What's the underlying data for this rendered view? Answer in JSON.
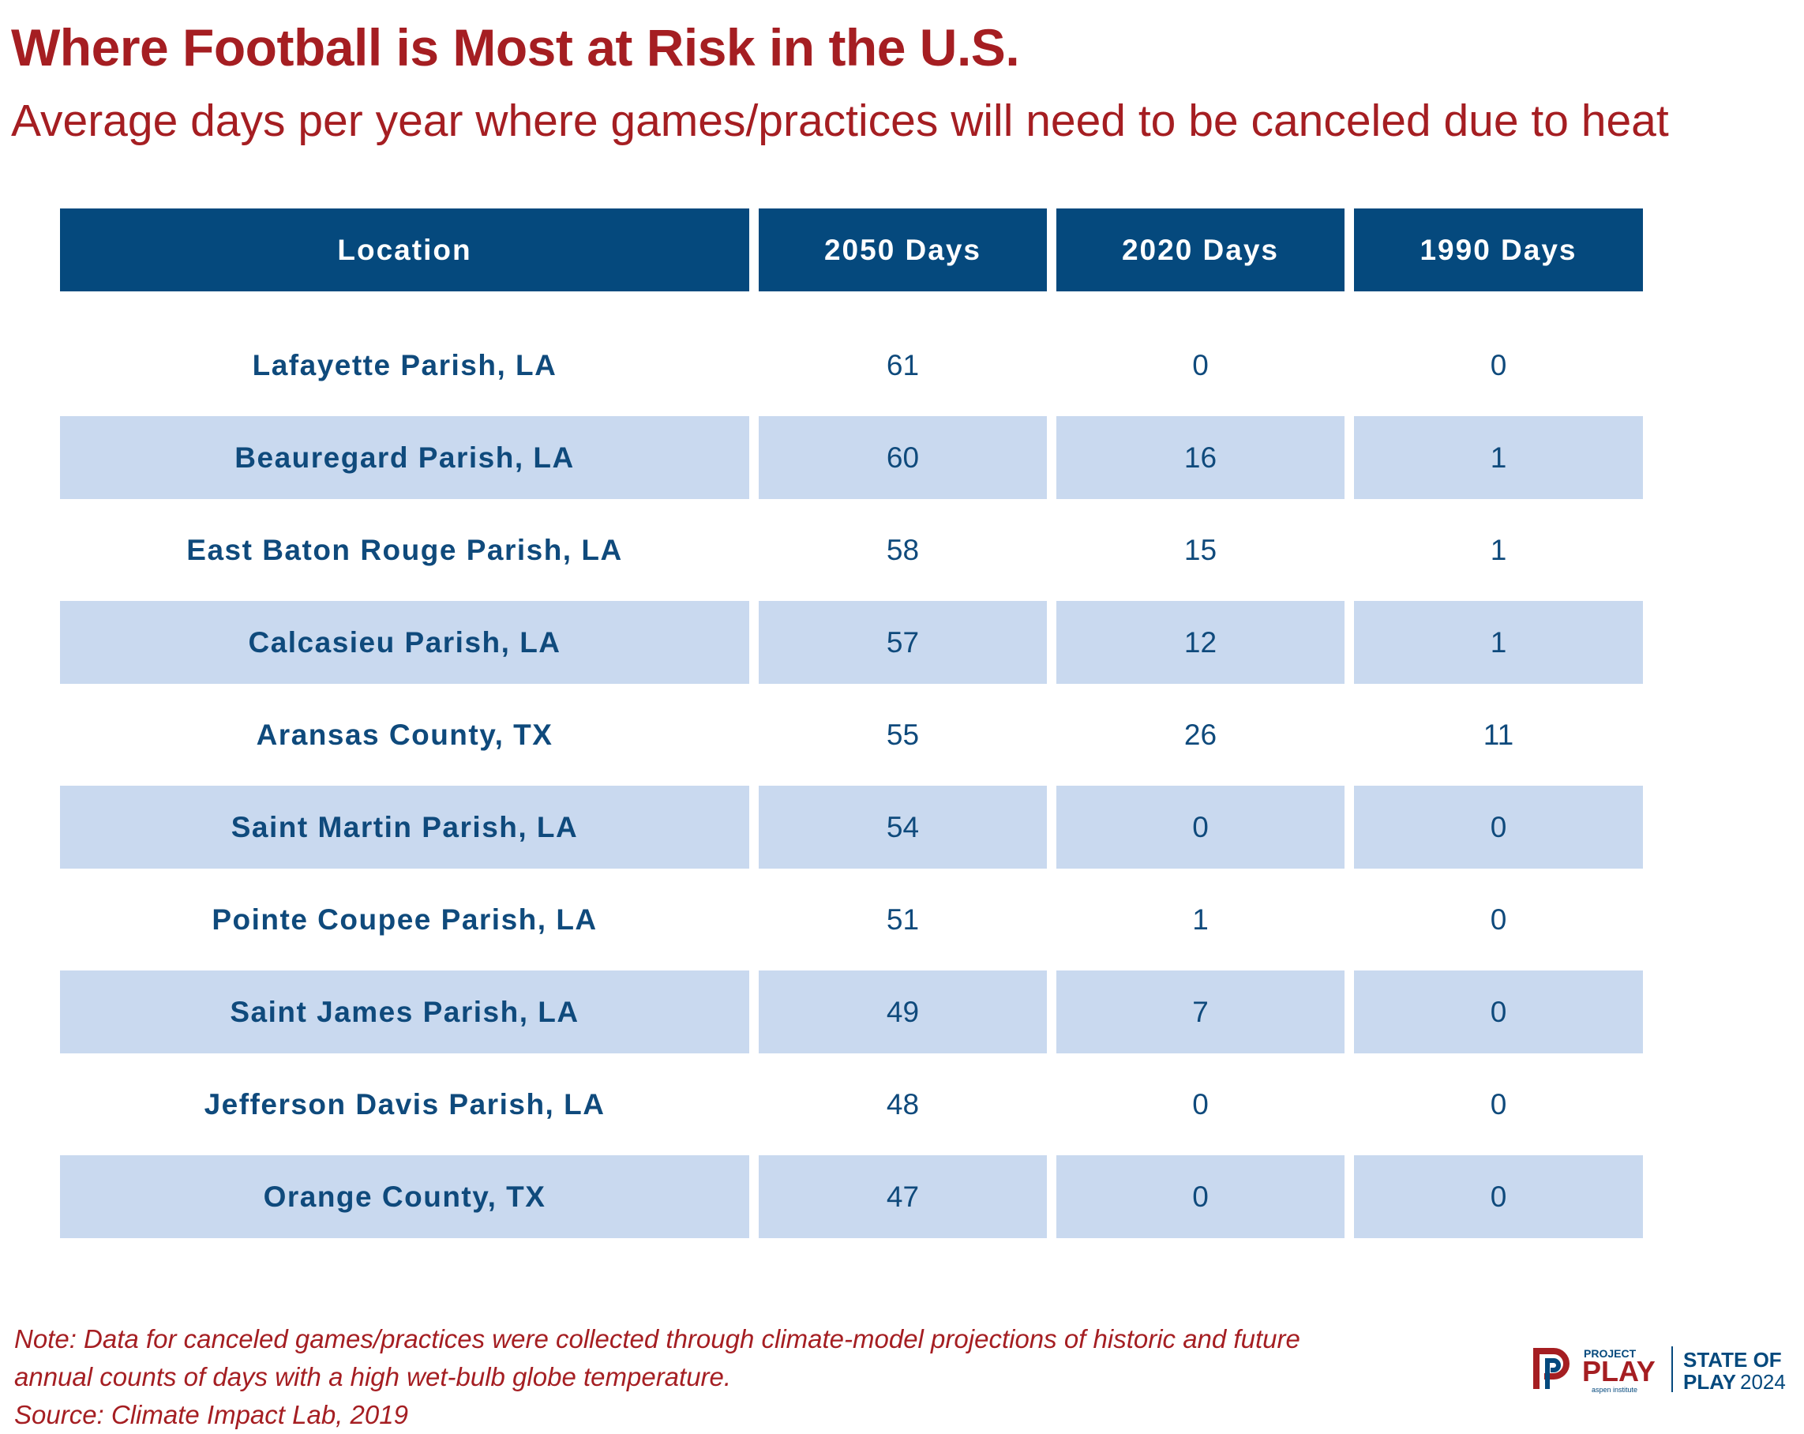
{
  "header": {
    "title": "Where Football is Most at Risk in the U.S.",
    "subtitle": "Average days per year where games/practices will need to be canceled due to heat"
  },
  "chart_data": {
    "type": "table",
    "columns": [
      "Location",
      "2050 Days",
      "2020 Days",
      "1990 Days"
    ],
    "rows": [
      [
        "Lafayette Parish, LA",
        "61",
        "0",
        "0"
      ],
      [
        "Beauregard Parish, LA",
        "60",
        "16",
        "1"
      ],
      [
        "East Baton Rouge Parish, LA",
        "58",
        "15",
        "1"
      ],
      [
        "Calcasieu Parish, LA",
        "57",
        "12",
        "1"
      ],
      [
        "Aransas County, TX",
        "55",
        "26",
        "11"
      ],
      [
        "Saint Martin Parish, LA",
        "54",
        "0",
        "0"
      ],
      [
        "Pointe Coupee Parish, LA",
        "51",
        "1",
        "0"
      ],
      [
        "Saint James Parish, LA",
        "49",
        "7",
        "0"
      ],
      [
        "Jefferson Davis Parish, LA",
        "48",
        "0",
        "0"
      ],
      [
        "Orange County, TX",
        "47",
        "0",
        "0"
      ]
    ]
  },
  "footer": {
    "note_line1": "Note: Data for canceled games/practices were collected through climate-model projections of historic and future",
    "note_line2": "annual counts of days with a high wet-bulb globe temperature.",
    "source": "Source: Climate Impact Lab, 2019"
  },
  "logo": {
    "project": "PROJECT",
    "play": "PLAY",
    "aspen": "aspen institute",
    "state_of": "STATE OF",
    "play_year_play": "PLAY",
    "year": "2024"
  },
  "colors": {
    "title": "#a51e22",
    "header_bg": "#05497d",
    "row_shade": "#c9d9ef",
    "text_blue": "#0f4a7c"
  }
}
